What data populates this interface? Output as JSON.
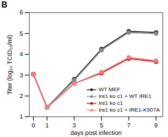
{
  "chart_data": {
    "type": "line",
    "title": "B",
    "xlabel": "days post infection",
    "ylabel": "Titer (log₁₀ TCID₅₀/ml)",
    "xlim": [
      -0.3,
      9.5
    ],
    "ylim": [
      1,
      6
    ],
    "xticks": [
      0,
      1,
      3,
      5,
      7,
      9
    ],
    "yticks": [
      1,
      2,
      3,
      4,
      5,
      6
    ],
    "x": [
      0,
      1,
      3,
      5,
      7,
      9
    ],
    "series": [
      {
        "name": "WT MEF",
        "color": "#1a1a1a",
        "marker": "circle",
        "line_style": "solid",
        "values": [
          3.05,
          1.45,
          2.8,
          4.25,
          5.1,
          5.05
        ]
      },
      {
        "name": "Ire1 ko c1 + WT IRE1",
        "color": "#888888",
        "marker": "circle",
        "line_style": "solid",
        "values": [
          3.05,
          1.45,
          2.75,
          4.2,
          5.05,
          5.0
        ]
      },
      {
        "name": "Ire1 ko c1",
        "color": "#cc0000",
        "marker": "circle",
        "line_style": "solid",
        "values": [
          3.05,
          1.45,
          2.6,
          3.1,
          3.8,
          3.65
        ]
      },
      {
        "name": "Ire1 ko c1 + IRE1-K907A",
        "color": "#f08080",
        "marker": "circle",
        "line_style": "solid",
        "values": [
          3.05,
          1.45,
          2.6,
          3.15,
          3.85,
          3.7
        ]
      }
    ],
    "legend": "lower right",
    "grid": false
  }
}
